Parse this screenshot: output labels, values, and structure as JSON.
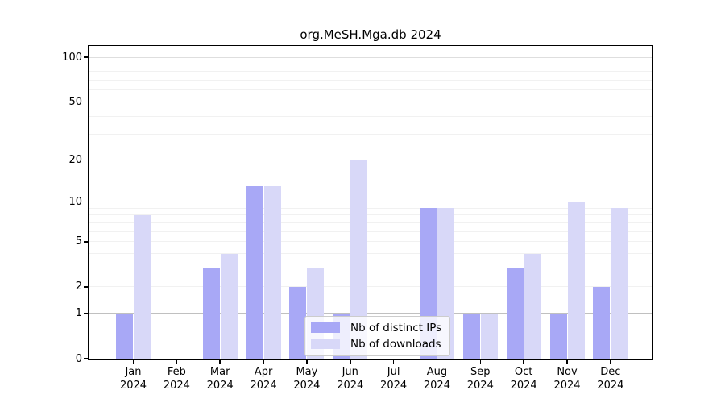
{
  "chart_data": {
    "type": "bar",
    "title": "org.MeSH.Mga.db 2024",
    "xlabel": "",
    "ylabel": "",
    "categories": [
      "Jan",
      "Feb",
      "Mar",
      "Apr",
      "May",
      "Jun",
      "Jul",
      "Aug",
      "Sep",
      "Oct",
      "Nov",
      "Dec"
    ],
    "year_label": "2024",
    "series": [
      {
        "name": "Nb of distinct IPs",
        "color": "#a8a8f6",
        "values": [
          1,
          0,
          3,
          13,
          2,
          1,
          0,
          9,
          1,
          3,
          1,
          2
        ]
      },
      {
        "name": "Nb of downloads",
        "color": "#d8d8f8",
        "values": [
          8,
          0,
          4,
          13,
          3,
          20,
          0,
          9,
          1,
          4,
          10,
          9
        ]
      }
    ],
    "yscale": "log1p",
    "yticks": [
      0,
      1,
      2,
      5,
      10,
      20,
      50,
      100
    ],
    "ylim": [
      0,
      119
    ],
    "grid": {
      "major_values": [
        1,
        10
      ],
      "major_color": "#c0c0c0",
      "mid_values": [
        50,
        100
      ],
      "mid_color": "#dedede",
      "minor_values": [
        2,
        3,
        4,
        5,
        6,
        7,
        8,
        9,
        20,
        30,
        40,
        60,
        70,
        80,
        90
      ],
      "minor_color": "#f1f1f1"
    },
    "legend_position": "lower center",
    "axis_color": "#000000",
    "background_color": "#ffffff"
  }
}
